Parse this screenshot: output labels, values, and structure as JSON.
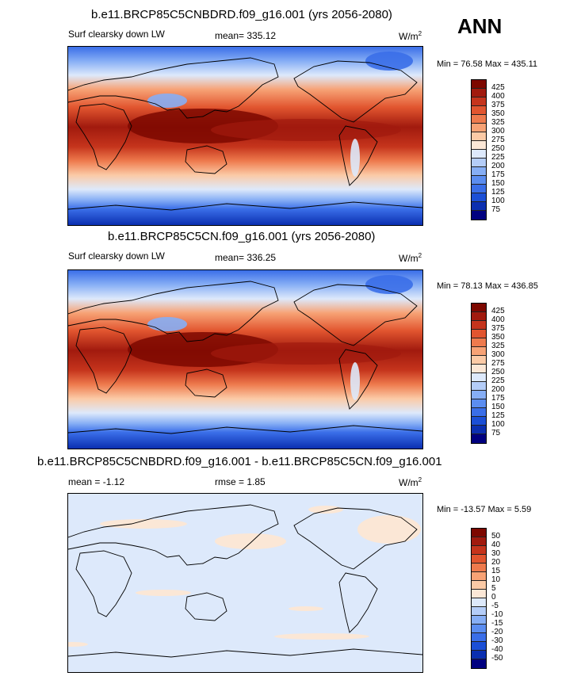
{
  "season": "ANN",
  "chart_data": [
    {
      "type": "heatmap",
      "title": "b.e11.BRCP85C5CNBDRD.f09_g16.001 (yrs 2056-2080)",
      "variable": "Surf clearsky down LW",
      "mean": "mean= 335.12",
      "units_base": "W/m",
      "units_exp": "2",
      "minmax": "Min =  76.58 Max = 435.11",
      "min": 76.58,
      "max": 435.11,
      "levels": [
        75,
        100,
        125,
        150,
        175,
        200,
        225,
        250,
        275,
        300,
        325,
        350,
        375,
        400,
        425
      ],
      "level_labels": [
        "75",
        "100",
        "125",
        "150",
        "175",
        "200",
        "225",
        "250",
        "275",
        "300",
        "325",
        "350",
        "375",
        "400",
        "425"
      ],
      "colors": [
        "#000080",
        "#0b2fb0",
        "#1b4fd6",
        "#3a6ee8",
        "#5b8df0",
        "#86aef5",
        "#b4cdf8",
        "#dde9fb",
        "#fbe7d6",
        "#fbcaa6",
        "#f7a275",
        "#ee7a4d",
        "#e1552f",
        "#c5341c",
        "#a11a0e",
        "#7d0800"
      ]
    },
    {
      "type": "heatmap",
      "title": "b.e11.BRCP85C5CN.f09_g16.001 (yrs 2056-2080)",
      "variable": "Surf clearsky down LW",
      "mean": "mean= 336.25",
      "units_base": "W/m",
      "units_exp": "2",
      "minmax": "Min =  78.13 Max = 436.85",
      "min": 78.13,
      "max": 436.85,
      "levels": [
        75,
        100,
        125,
        150,
        175,
        200,
        225,
        250,
        275,
        300,
        325,
        350,
        375,
        400,
        425
      ],
      "level_labels": [
        "75",
        "100",
        "125",
        "150",
        "175",
        "200",
        "225",
        "250",
        "275",
        "300",
        "325",
        "350",
        "375",
        "400",
        "425"
      ],
      "colors": [
        "#000080",
        "#0b2fb0",
        "#1b4fd6",
        "#3a6ee8",
        "#5b8df0",
        "#86aef5",
        "#b4cdf8",
        "#dde9fb",
        "#fbe7d6",
        "#fbcaa6",
        "#f7a275",
        "#ee7a4d",
        "#e1552f",
        "#c5341c",
        "#a11a0e",
        "#7d0800"
      ]
    },
    {
      "type": "heatmap",
      "title": "b.e11.BRCP85C5CNBDRD.f09_g16.001 - b.e11.BRCP85C5CN.f09_g16.001",
      "mean": "mean =  -1.12",
      "rmse": "rmse =   1.85",
      "units_base": "W/m",
      "units_exp": "2",
      "minmax": "Min = -13.57 Max =   5.59",
      "min": -13.57,
      "max": 5.59,
      "levels": [
        -50,
        -40,
        -30,
        -20,
        -15,
        -10,
        -5,
        0,
        5,
        10,
        15,
        20,
        30,
        40,
        50
      ],
      "level_labels": [
        "-50",
        "-40",
        "-30",
        "-20",
        "-15",
        "-10",
        "-5",
        "0",
        "5",
        "10",
        "15",
        "20",
        "30",
        "40",
        "50"
      ],
      "colors": [
        "#000080",
        "#0b2fb0",
        "#1b4fd6",
        "#3a6ee8",
        "#5b8df0",
        "#86aef5",
        "#b4cdf8",
        "#dde9fb",
        "#fbe7d6",
        "#fbcaa6",
        "#f7a275",
        "#ee7a4d",
        "#e1552f",
        "#c5341c",
        "#a11a0e",
        "#7d0800"
      ]
    }
  ]
}
